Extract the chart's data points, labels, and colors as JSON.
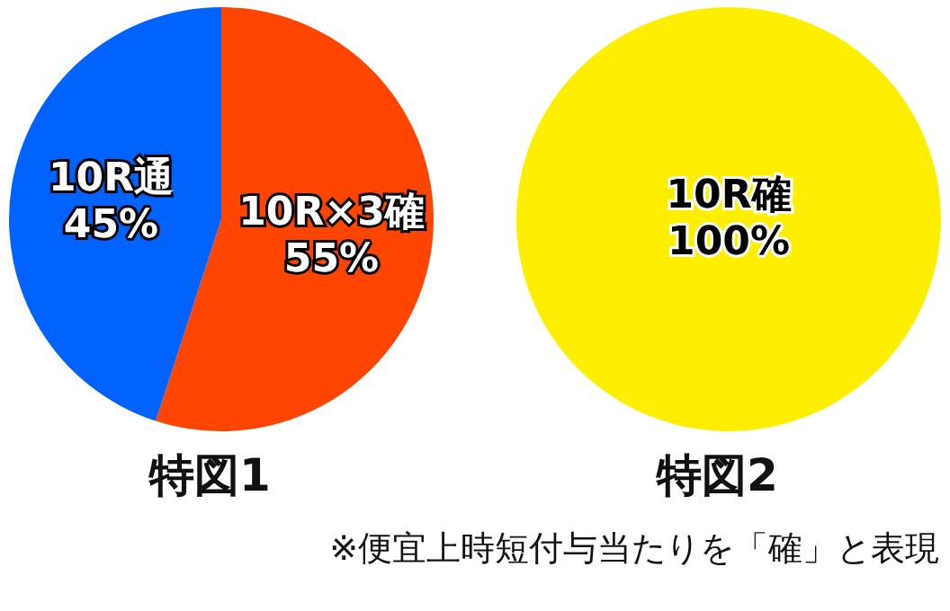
{
  "chart_data": [
    {
      "type": "pie",
      "title": "特図1",
      "categories": [
        "10R×3確",
        "10R通"
      ],
      "values": [
        55,
        45
      ],
      "colors": [
        "#ff4500",
        "#0062ff"
      ],
      "value_labels": [
        "55%",
        "45%"
      ]
    },
    {
      "type": "pie",
      "title": "特図2",
      "categories": [
        "10R確"
      ],
      "values": [
        100
      ],
      "colors": [
        "#ffee00"
      ],
      "value_labels": [
        "100%"
      ],
      "annotations": [
        "※便宜上時短付与当たりを「確」と表現"
      ]
    }
  ]
}
